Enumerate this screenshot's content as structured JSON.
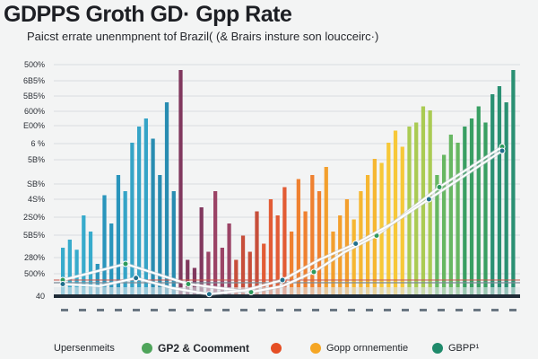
{
  "header": {
    "title": "GDPPS Groth GD· Gpp Rate",
    "subtitle": "Paicst errate unenmpnent tof Brazil( (& Brairs insture son loucceirc·)"
  },
  "chart_data": {
    "type": "bar",
    "title": "GDPPS Groth GD· Gpp Rate",
    "subtitle": "Paicst errate unenmpnent tof Brazil( (& Brairs insture son loucceirc·)",
    "y_tick_labels": [
      "500%",
      "6B5%",
      "5B5%",
      "600%",
      "E00%",
      "6 %",
      "5B%",
      "SB%",
      "4S%",
      "2S0%",
      "5B5%",
      "280%",
      "500%",
      "40"
    ],
    "ylim": [
      0,
      600
    ],
    "grid": true,
    "legend_position": "bottom",
    "series": [
      {
        "name": "Upersenmeits",
        "color": "#27a3c6",
        "values": [
          120,
          140,
          115,
          200,
          160,
          80,
          250,
          180,
          300,
          260,
          380,
          420,
          440,
          390,
          300,
          480,
          260,
          560
        ]
      },
      {
        "name": "GP2 & Coomment",
        "color": "#e56a2b",
        "values": [
          90,
          70,
          220,
          110,
          260,
          120,
          180,
          90,
          150,
          110,
          210,
          130,
          240,
          200,
          270,
          160,
          290,
          210,
          300,
          260,
          320
        ]
      },
      {
        "name": "Gopp ornnementie",
        "color": "#f5a624",
        "values": [
          160,
          200,
          240,
          190,
          260,
          300,
          340,
          330,
          380,
          410,
          370,
          420,
          430,
          470,
          460
        ]
      },
      {
        "name": "GBPP¹",
        "color": "#2e9a5b",
        "values": [
          300,
          350,
          400,
          380,
          420,
          440,
          470,
          430,
          500,
          520,
          480,
          560
        ]
      }
    ],
    "trend_lines": [
      {
        "values": [
          40,
          60,
          80,
          55,
          30,
          20,
          10,
          25,
          60,
          110,
          150,
          210,
          270,
          320,
          370
        ]
      },
      {
        "values": [
          30,
          25,
          45,
          20,
          5,
          15,
          40,
          90,
          130,
          180,
          240,
          300,
          360
        ]
      }
    ],
    "colors": {
      "accent_purple": "#7a2d55",
      "accent_purple_dark": "#6b1e4a",
      "accent_blue_dark": "#1a6f96",
      "baseline": "#1f2b36"
    }
  },
  "legend": [
    {
      "label": "Upersenmeits",
      "color": "#5fb8d8",
      "has_swatch": false
    },
    {
      "label": "GP2 & Coomment",
      "color": "#4ea45a",
      "has_swatch": true
    },
    {
      "label": "",
      "color": "#e54e24",
      "has_swatch": true
    },
    {
      "label": "Gopp ornnementie",
      "color": "#f5a624",
      "has_swatch": true
    },
    {
      "label": "GBPP¹",
      "color": "#1f8a6b",
      "has_swatch": true
    }
  ]
}
